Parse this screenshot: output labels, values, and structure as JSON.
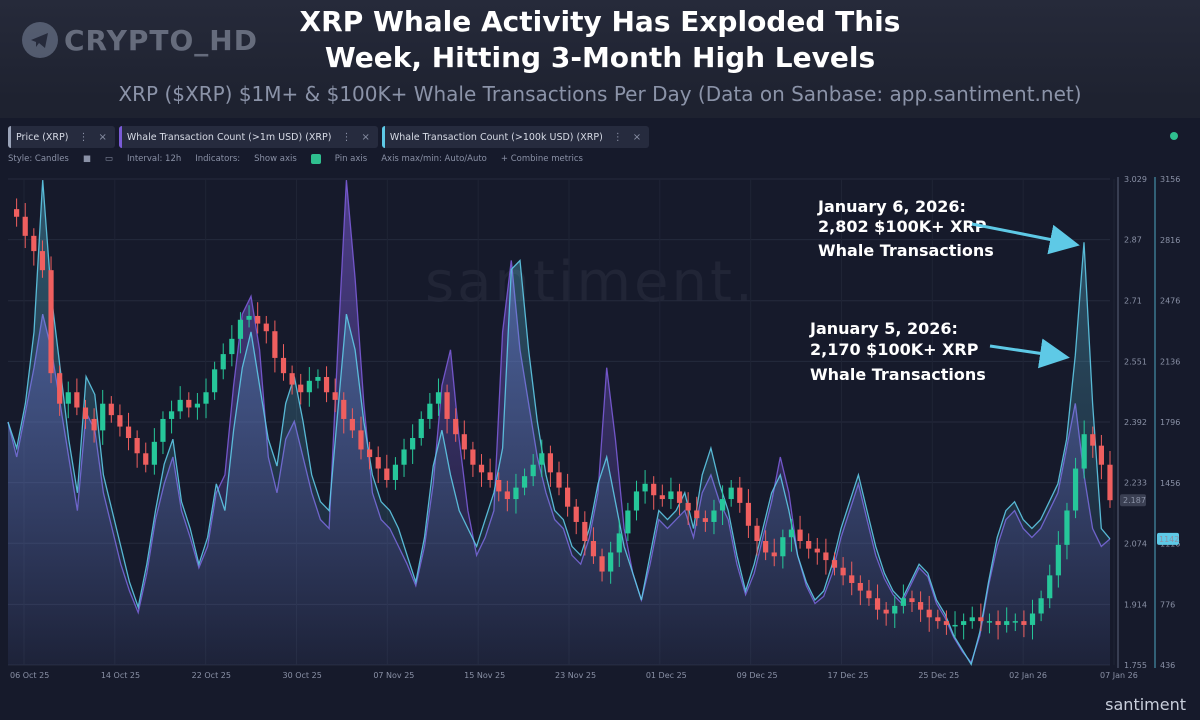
{
  "logo_text": "CRYPTO_HD",
  "title_line1": "XRP Whale Activity Has Exploded This",
  "title_line2": "Week, Hitting 3-Month High Levels",
  "subtitle": "XRP ($XRP) $1M+ & $100K+ Whale Transactions Per Day (Data on Sanbase: app.santiment.net)",
  "tabs": [
    {
      "label": "Price (XRP)",
      "color": "#9aa3b8"
    },
    {
      "label": "Whale Transaction Count (>1m USD) (XRP)",
      "color": "#7a5bd6"
    },
    {
      "label": "Whale Transaction Count (>100k USD) (XRP)",
      "color": "#5ec9e6"
    }
  ],
  "toolbar": {
    "style": "Style: Candles",
    "interval": "Interval: 12h",
    "indicators": "Indicators:",
    "show_axis": "Show axis",
    "pin_axis": "Pin axis",
    "axis_maxmin": "Axis max/min: Auto/Auto",
    "combine": "+ Combine metrics"
  },
  "watermark": "santiment.",
  "brand": "santiment",
  "colors": {
    "up": "#26c79a",
    "down": "#ef5f5f",
    "whale1m": "#7a5bd6",
    "whale100k": "#5ec9e6",
    "callout": "#5ec9e6"
  },
  "annotations": [
    {
      "line1": "January 6, 2026:",
      "line2": "2,802 $100K+ XRP",
      "line3": "Whale Transactions"
    },
    {
      "line1": "January 5, 2026:",
      "line2": "2,170 $100K+ XRP",
      "line3": "Whale Transactions"
    }
  ],
  "chart_data": {
    "type": "line",
    "title": "XRP Whale Activity Has Exploded This Week, Hitting 3-Month High Levels",
    "price_axis": {
      "ticks": [
        3.029,
        2.87,
        2.71,
        2.551,
        2.392,
        2.233,
        2.074,
        1.914,
        1.755
      ],
      "labels": [
        "3.029",
        "2.87",
        "2.71",
        "2.551",
        "2.392",
        "2.233",
        "2.074",
        "1.914",
        "1.755"
      ],
      "current_label": "2.187",
      "current": 2.187
    },
    "count_axis": {
      "ticks": [
        3156,
        2816,
        2476,
        2136,
        1796,
        1456,
        1116,
        776,
        436
      ],
      "labels": [
        "3156",
        "2816",
        "2476",
        "2136",
        "1796",
        "1456",
        "1116",
        "776",
        "436"
      ],
      "current_label": "1142",
      "current": 1142
    },
    "x_labels": [
      "06 Oct 25",
      "14 Oct 25",
      "22 Oct 25",
      "30 Oct 25",
      "07 Nov 25",
      "15 Nov 25",
      "23 Nov 25",
      "01 Dec 25",
      "09 Dec 25",
      "17 Dec 25",
      "25 Dec 25",
      "02 Jan 26",
      "07 Jan 26"
    ],
    "price_close": [
      2.95,
      2.93,
      2.88,
      2.84,
      2.79,
      2.52,
      2.44,
      2.47,
      2.43,
      2.4,
      2.37,
      2.44,
      2.41,
      2.38,
      2.35,
      2.31,
      2.28,
      2.34,
      2.4,
      2.42,
      2.45,
      2.43,
      2.44,
      2.47,
      2.53,
      2.57,
      2.61,
      2.66,
      2.67,
      2.65,
      2.63,
      2.56,
      2.52,
      2.49,
      2.47,
      2.5,
      2.51,
      2.47,
      2.45,
      2.4,
      2.37,
      2.32,
      2.3,
      2.27,
      2.24,
      2.28,
      2.32,
      2.35,
      2.4,
      2.44,
      2.47,
      2.4,
      2.36,
      2.32,
      2.28,
      2.26,
      2.24,
      2.21,
      2.19,
      2.22,
      2.25,
      2.28,
      2.31,
      2.26,
      2.22,
      2.17,
      2.13,
      2.08,
      2.04,
      2.0,
      2.05,
      2.1,
      2.16,
      2.21,
      2.23,
      2.2,
      2.19,
      2.21,
      2.18,
      2.16,
      2.14,
      2.13,
      2.16,
      2.19,
      2.22,
      2.18,
      2.12,
      2.08,
      2.05,
      2.04,
      2.09,
      2.11,
      2.08,
      2.06,
      2.05,
      2.03,
      2.01,
      1.99,
      1.97,
      1.95,
      1.93,
      1.9,
      1.89,
      1.91,
      1.93,
      1.92,
      1.9,
      1.88,
      1.87,
      1.86,
      1.86,
      1.87,
      1.88,
      1.87,
      1.87,
      1.86,
      1.87,
      1.87,
      1.86,
      1.89,
      1.93,
      1.99,
      2.07,
      2.16,
      2.27,
      2.36,
      2.33,
      2.28,
      2.187
    ],
    "whale_100k": [
      1796,
      1650,
      1900,
      2300,
      3150,
      2500,
      2100,
      1700,
      1400,
      2050,
      1950,
      1500,
      1300,
      1100,
      900,
      760,
      1000,
      1300,
      1560,
      1700,
      1350,
      1200,
      1000,
      1150,
      1450,
      1300,
      1750,
      2100,
      2300,
      2000,
      1700,
      1550,
      1900,
      2050,
      1800,
      1500,
      1350,
      1300,
      1850,
      2400,
      2200,
      1800,
      1500,
      1350,
      1300,
      1200,
      1050,
      900,
      1150,
      1550,
      1750,
      1500,
      1300,
      1200,
      1100,
      1250,
      1400,
      1650,
      2650,
      2700,
      2200,
      1800,
      1500,
      1300,
      1250,
      1100,
      1050,
      1200,
      1450,
      1600,
      1350,
      1100,
      950,
      800,
      1050,
      1300,
      1250,
      1300,
      1400,
      1200,
      1500,
      1650,
      1450,
      1300,
      1050,
      850,
      1000,
      1200,
      1400,
      1500,
      1300,
      1050,
      900,
      800,
      850,
      1000,
      1200,
      1350,
      1500,
      1300,
      1100,
      950,
      850,
      800,
      900,
      1000,
      950,
      800,
      720,
      600,
      520,
      440,
      620,
      900,
      1150,
      1300,
      1350,
      1250,
      1200,
      1250,
      1350,
      1450,
      1700,
      2170,
      2802,
      1900,
      1200,
      1142
    ],
    "whale_1m": [
      1796,
      1600,
      1850,
      2100,
      2400,
      2200,
      1900,
      1600,
      1300,
      1850,
      1750,
      1400,
      1200,
      1000,
      850,
      730,
      950,
      1250,
      1450,
      1600,
      1300,
      1150,
      980,
      1100,
      1400,
      1500,
      2000,
      2400,
      2500,
      2200,
      1600,
      1400,
      1700,
      1800,
      1600,
      1400,
      1250,
      1200,
      2200,
      3150,
      2600,
      1900,
      1400,
      1250,
      1200,
      1100,
      1000,
      880,
      1100,
      1450,
      2000,
      2200,
      1700,
      1300,
      1050,
      1150,
      1300,
      2300,
      2700,
      2200,
      1900,
      1600,
      1400,
      1250,
      1200,
      1050,
      1000,
      1150,
      1400,
      2100,
      1700,
      1200,
      950,
      800,
      1000,
      1250,
      1200,
      1250,
      1300,
      1150,
      1400,
      1500,
      1350,
      1250,
      1000,
      830,
      950,
      1150,
      1350,
      1600,
      1400,
      1050,
      880,
      780,
      820,
      950,
      1150,
      1300,
      1450,
      1250,
      1050,
      920,
      830,
      780,
      880,
      980,
      930,
      780,
      700,
      590,
      510,
      450,
      600,
      880,
      1100,
      1250,
      1300,
      1200,
      1150,
      1200,
      1300,
      1400,
      1650,
      1900,
      1500,
      1200,
      1100,
      1142
    ]
  }
}
